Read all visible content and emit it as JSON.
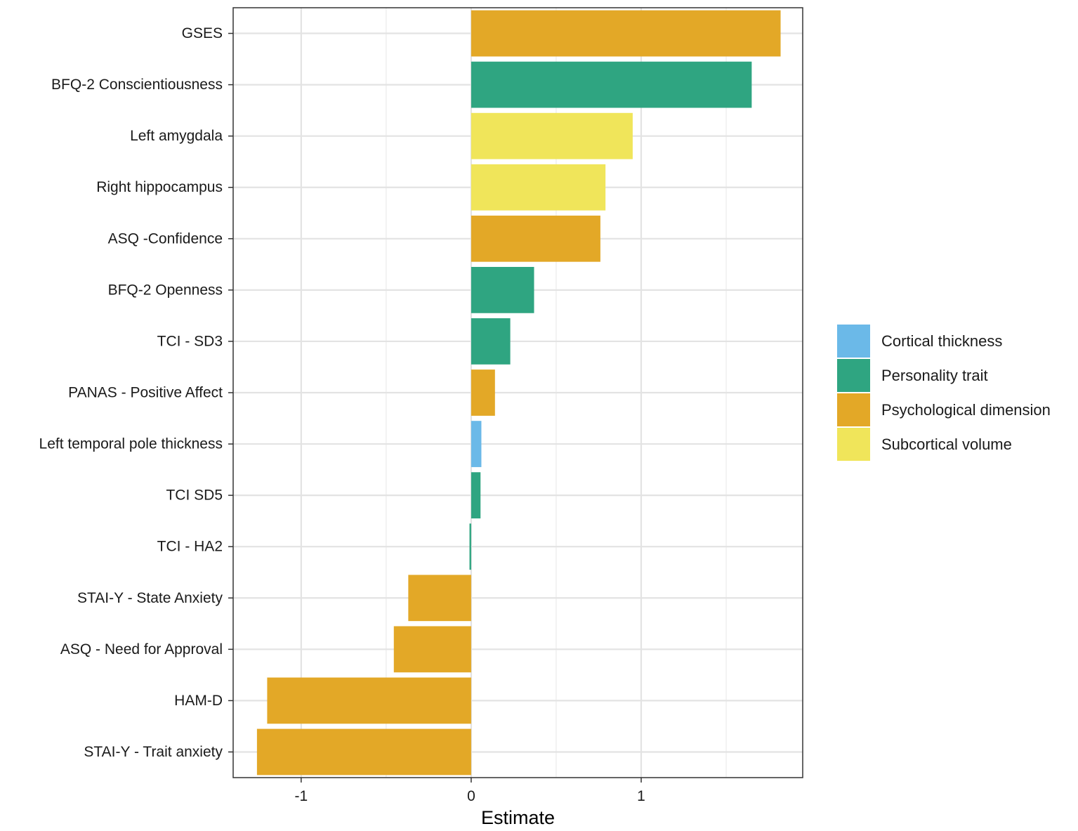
{
  "chart_data": {
    "type": "bar",
    "orientation": "horizontal",
    "title": "",
    "xlabel": "Estimate",
    "ylabel": "",
    "xlim": [
      -1.4,
      1.95
    ],
    "x_ticks": [
      -1,
      0,
      1
    ],
    "x_tick_labels": [
      "-1",
      "0",
      "1"
    ],
    "x_minor_gridlines": [
      -0.5,
      0.5,
      1.5
    ],
    "grid": true,
    "legend_position": "right",
    "categories": [
      "GSES",
      "BFQ-2 Conscientiousness",
      "Left amygdala",
      "Right hippocampus",
      "ASQ -Confidence",
      "BFQ-2  Openness",
      "TCI - SD3",
      "PANAS - Positive Affect",
      "Left temporal pole thickness",
      "TCI SD5",
      "TCI - HA2",
      "STAI-Y - State Anxiety",
      "ASQ - Need for Approval",
      "HAM-D",
      "STAI-Y - Trait anxiety"
    ],
    "values": [
      1.82,
      1.65,
      0.95,
      0.79,
      0.76,
      0.37,
      0.23,
      0.14,
      0.06,
      0.055,
      -0.01,
      -0.37,
      -0.455,
      -1.2,
      -1.26
    ],
    "groups": [
      "Psychological dimension",
      "Personality trait",
      "Subcortical volume",
      "Subcortical volume",
      "Psychological dimension",
      "Personality trait",
      "Personality trait",
      "Psychological dimension",
      "Cortical thickness",
      "Personality trait",
      "Personality trait",
      "Psychological dimension",
      "Psychological dimension",
      "Psychological dimension",
      "Psychological dimension"
    ],
    "legend": [
      {
        "label": "Cortical thickness",
        "color": "#6BB9E8"
      },
      {
        "label": "Personality trait",
        "color": "#2FA581"
      },
      {
        "label": "Psychological dimension",
        "color": "#E3A827"
      },
      {
        "label": "Subcortical volume",
        "color": "#F0E55A"
      }
    ]
  }
}
